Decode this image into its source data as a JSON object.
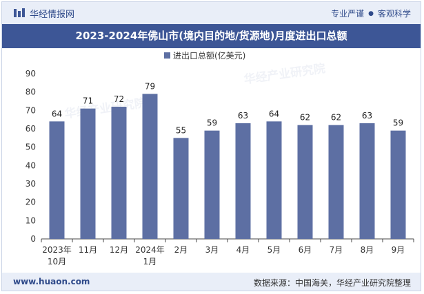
{
  "header": {
    "brand": "华经情报网",
    "tagline_a": "专业严谨",
    "tagline_b": "客观科学"
  },
  "footer": {
    "website": "www.huaon.com",
    "source": "数据来源：中国海关，华经产业研究院整理"
  },
  "colors": {
    "bar": "#5d6fa3",
    "accent": "#3d5696"
  },
  "chart_data": {
    "type": "bar",
    "title": "2023-2024年佛山市(境内目的地/货源地)月度进出口总额",
    "legend": "进出口总额(亿美元)",
    "categories": [
      [
        "2023年",
        "10月"
      ],
      [
        "11月"
      ],
      [
        "12月"
      ],
      [
        "2024年",
        "1月"
      ],
      [
        "2月"
      ],
      [
        "3月"
      ],
      [
        "4月"
      ],
      [
        "5月"
      ],
      [
        "6月"
      ],
      [
        "7月"
      ],
      [
        "8月"
      ],
      [
        "9月"
      ]
    ],
    "values": [
      64,
      71,
      72,
      79,
      55,
      59,
      63,
      64,
      62,
      62,
      63,
      59
    ],
    "ylim": [
      0,
      90
    ],
    "yticks": [
      0,
      10,
      20,
      30,
      40,
      50,
      60,
      70,
      80,
      90
    ],
    "xlabel": "",
    "ylabel": ""
  }
}
